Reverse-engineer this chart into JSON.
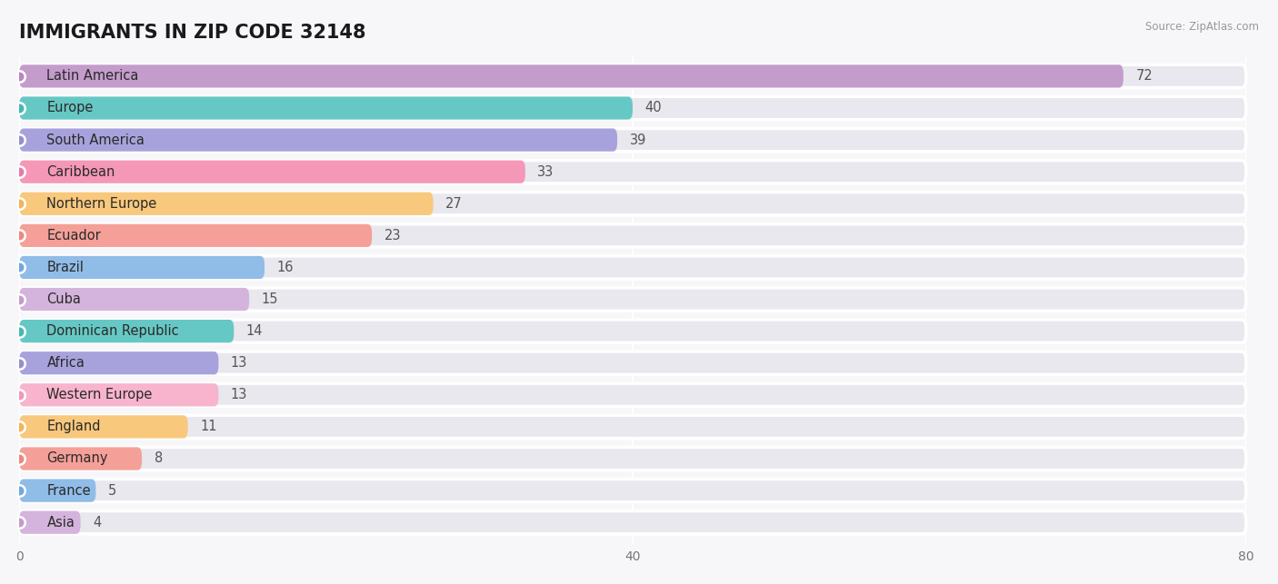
{
  "title": "IMMIGRANTS IN ZIP CODE 32148",
  "source": "Source: ZipAtlas.com",
  "categories": [
    "Latin America",
    "Europe",
    "South America",
    "Caribbean",
    "Northern Europe",
    "Ecuador",
    "Brazil",
    "Cuba",
    "Dominican Republic",
    "Africa",
    "Western Europe",
    "England",
    "Germany",
    "France",
    "Asia"
  ],
  "values": [
    72,
    40,
    39,
    33,
    27,
    23,
    16,
    15,
    14,
    13,
    13,
    11,
    8,
    5,
    4
  ],
  "bar_colors": [
    "#c49ccc",
    "#66c8c4",
    "#a8a2dc",
    "#f598b8",
    "#f8c87c",
    "#f4a098",
    "#90bce8",
    "#d4b4dc",
    "#66c8c4",
    "#a8a2dc",
    "#f8b4cc",
    "#f8c87c",
    "#f4a098",
    "#90bce8",
    "#d4b4dc"
  ],
  "dot_colors": [
    "#b888c0",
    "#44b8b4",
    "#9490cc",
    "#e87aaa",
    "#f0b45a",
    "#ec887c",
    "#70a8e0",
    "#c49ccc",
    "#44b8b4",
    "#9490cc",
    "#f098b8",
    "#f0b45a",
    "#ec887c",
    "#70a8e0",
    "#c49ccc"
  ],
  "xlim": [
    0,
    80
  ],
  "xticks": [
    0,
    40,
    80
  ],
  "background_color": "#f7f7fa",
  "bar_bg_color": "#e8e8ee",
  "row_bg_color": "#f0f0f4",
  "title_fontsize": 15,
  "label_fontsize": 10.5,
  "value_fontsize": 10.5
}
